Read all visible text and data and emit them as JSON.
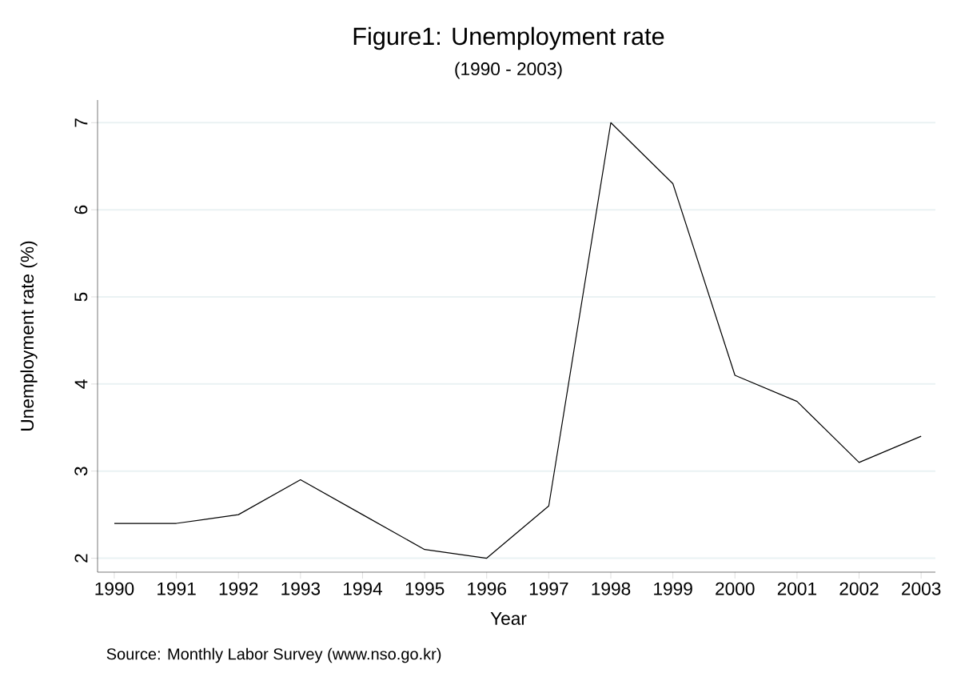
{
  "chart_data": {
    "type": "line",
    "title": "Figure1: Unemployment rate",
    "subtitle": "(1990 - 2003)",
    "xlabel": "Year",
    "ylabel": "Unemployment rate (%)",
    "annotations": [
      "Source: Monthly Labor Survey (www.nso.go.kr)"
    ],
    "categories": [
      "1990",
      "1991",
      "1992",
      "1993",
      "1994",
      "1995",
      "1996",
      "1997",
      "1998",
      "1999",
      "2000",
      "2001",
      "2002",
      "2003"
    ],
    "values": [
      2.4,
      2.4,
      2.5,
      2.9,
      2.5,
      2.1,
      2.0,
      2.6,
      7.0,
      6.3,
      4.1,
      3.8,
      3.1,
      3.4
    ],
    "color": "#000000",
    "ylim": [
      1.84,
      7.26
    ],
    "yticks": [
      2,
      3,
      4,
      5,
      6,
      7
    ],
    "grid": "y",
    "marker": "none",
    "line_style": "solid"
  }
}
